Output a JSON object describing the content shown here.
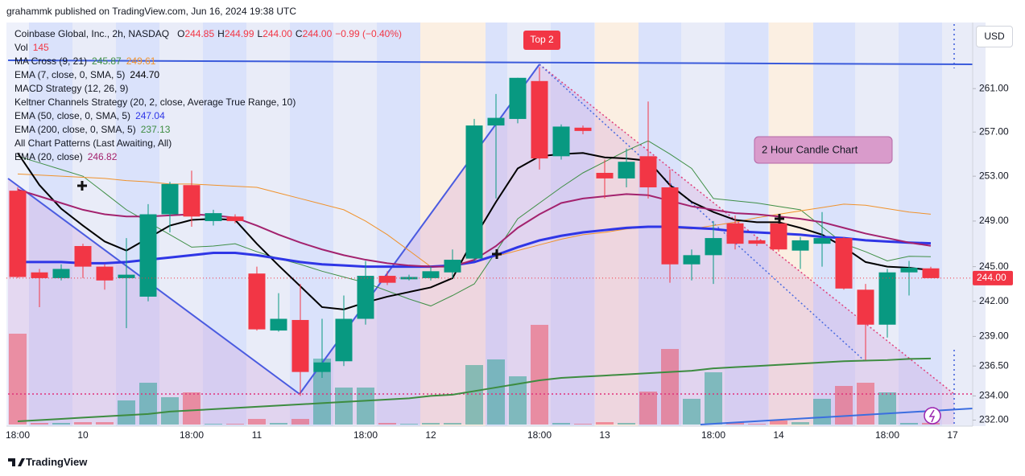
{
  "header": {
    "publisher": "grahammk published on TradingView.com, Jun 16, 2024 19:38 UTC"
  },
  "footer": "TradingView",
  "currency": "USD",
  "chart_data": {
    "type": "candlestick",
    "symbol": "Coinbase Global, Inc., 2h, NASDAQ",
    "ohlc_summary": [
      {
        "label": "O",
        "value": "244.85"
      },
      {
        "label": "H",
        "value": "244.99"
      },
      {
        "label": "L",
        "value": "244.00"
      },
      {
        "label": "C",
        "value": "244.00"
      }
    ],
    "change": "−0.99 (−0.40%)",
    "volume_label": "Vol",
    "last_price_label": "244.00",
    "log_scale": true,
    "up_color": "#089981",
    "down_color": "#f23645",
    "ylim": [
      231.5,
      267.2
    ],
    "yticks": [
      {
        "value": 232,
        "label": "232.00"
      },
      {
        "value": 234,
        "label": "234.00"
      },
      {
        "value": 236.5,
        "label": "236.50"
      },
      {
        "value": 239,
        "label": "239.00"
      },
      {
        "value": 242,
        "label": "242.00"
      },
      {
        "value": 245,
        "label": "245.00"
      },
      {
        "value": 249,
        "label": "249.00"
      },
      {
        "value": 253,
        "label": "253.00"
      },
      {
        "value": 257,
        "label": "257.00"
      },
      {
        "value": 261,
        "label": "261.00"
      }
    ],
    "categories": [
      "18:00",
      null,
      null,
      "10",
      null,
      null,
      null,
      null,
      "18:00",
      null,
      null,
      "11",
      null,
      null,
      null,
      null,
      "18:00",
      null,
      null,
      "12",
      null,
      null,
      null,
      null,
      "18:00",
      null,
      null,
      "13",
      null,
      null,
      null,
      null,
      "18:00",
      null,
      null,
      "14",
      null,
      null,
      null,
      null,
      "18:00",
      null,
      null,
      "17"
    ],
    "open": [
      251.7,
      244.5,
      244,
      246.8,
      245,
      244,
      242.4,
      249.6,
      252.2,
      249,
      249.4,
      244.4,
      239.5,
      240.4,
      236,
      236.9,
      240.5,
      244.2,
      243.9,
      244,
      244.5,
      245.7,
      257.6,
      258.2,
      261.7,
      254.8,
      257.4,
      253.3,
      252.8,
      254.8,
      252,
      245.2,
      246,
      248.8,
      247.3,
      248.8,
      246.4,
      247,
      247.5,
      243,
      240,
      244.5,
      244.85,
      null
    ],
    "high": [
      252,
      244.8,
      245.2,
      247,
      245.2,
      247.5,
      250.5,
      252.5,
      253.5,
      250,
      249.6,
      245,
      242.7,
      243.5,
      240.5,
      242.5,
      245.5,
      244.6,
      244.3,
      245,
      246.5,
      258.2,
      260.5,
      262,
      263,
      257.7,
      257.6,
      254.5,
      255.5,
      259.8,
      253.6,
      246.5,
      249,
      249.5,
      247.6,
      249.5,
      247.6,
      249.8,
      247.6,
      243.5,
      244.8,
      245.5,
      244.99,
      null
    ],
    "low": [
      244,
      241.5,
      243.8,
      244,
      243,
      239.7,
      242,
      248,
      248.5,
      248.6,
      248.8,
      239.5,
      239.4,
      234,
      235.5,
      236.5,
      240,
      243.4,
      243.8,
      243.8,
      244,
      245.5,
      251,
      257.8,
      253.6,
      254.5,
      256.8,
      251,
      252,
      251,
      243.6,
      243.8,
      243.5,
      246.5,
      246.8,
      246.3,
      244.8,
      245,
      243,
      237,
      238.9,
      242.5,
      244,
      null
    ],
    "close": [
      244.1,
      244,
      244.8,
      245,
      243.8,
      244.3,
      249.6,
      252.3,
      249.4,
      249.7,
      249,
      239.6,
      240.5,
      236,
      236.8,
      240.5,
      244.2,
      243.6,
      244.1,
      244.6,
      245.6,
      257.6,
      258.3,
      262,
      254.6,
      257.5,
      257.1,
      252.8,
      254.3,
      252,
      245.2,
      246,
      247.5,
      247,
      247,
      246.5,
      247.3,
      247.5,
      243.1,
      240,
      244.5,
      244.9,
      244,
      null
    ],
    "volume": [
      7910,
      140,
      140,
      210,
      210,
      2100,
      3640,
      2380,
      2800,
      70,
      70,
      490,
      140,
      490,
      5740,
      3220,
      3220,
      140,
      70,
      140,
      140,
      5180,
      5670,
      4200,
      8680,
      140,
      70,
      210,
      140,
      2870,
      6580,
      2240,
      4550,
      210,
      70,
      350,
      210,
      2240,
      3360,
      3640,
      2800,
      140,
      145,
      null
    ],
    "indicators": [
      {
        "name": "MA Cross (9, 21)",
        "lines": [
          {
            "color": "#3f8f46",
            "width": 1,
            "values": [
              254.8,
              254.2,
              253.6,
              253.0,
              251.5,
              250.0,
              248.9,
              247.8,
              246.7,
              246.8,
              247.0,
              246.3,
              245.7,
              245.2,
              244.6,
              244.1,
              243.6,
              242.9,
              242.2,
              241.6,
              242.5,
              243.5,
              246.3,
              249.2,
              250.6,
              252.0,
              253.3,
              254.3,
              255.3,
              256.2,
              255.0,
              253.7,
              251.0,
              250.8,
              250.6,
              250.3,
              250.0,
              248.5,
              247.0,
              246.3,
              245.5,
              245.9,
              245.87,
              null
            ]
          },
          {
            "color": "#f0922b",
            "width": 1,
            "values": [
              253.2,
              253.1,
              253.0,
              252.9,
              252.8,
              252.6,
              252.5,
              252.3,
              252.3,
              252.2,
              252.1,
              252.0,
              251.5,
              251.0,
              250.5,
              250.0,
              249.0,
              247.8,
              246.4,
              245.0,
              245.2,
              245.5,
              245.9,
              246.4,
              246.9,
              247.4,
              247.8,
              248.0,
              248.3,
              248.5,
              248.4,
              248.3,
              248.6,
              248.9,
              249.3,
              249.6,
              249.9,
              250.2,
              250.5,
              250.4,
              250.1,
              249.8,
              249.61,
              null
            ]
          }
        ]
      },
      {
        "name": "EMA (7, close, 0, SMA, 5)",
        "lines": [
          {
            "color": "#000000",
            "width": 2,
            "value_label": "244.70",
            "values": [
              255.1,
              252.2,
              250.1,
              248.6,
              247.2,
              246.4,
              247.5,
              248.6,
              249.1,
              249.2,
              249.1,
              247.0,
              245.1,
              243.3,
              241.5,
              241.3,
              241.9,
              242.4,
              242.8,
              243.2,
              244.0,
              247.5,
              250.7,
              253.7,
              254.8,
              255.0,
              255.1,
              254.7,
              254.6,
              254.4,
              252.2,
              250.7,
              249.8,
              249.1,
              248.9,
              248.9,
              248.4,
              247.8,
              246.7,
              245.4,
              245.0,
              244.9,
              244.7,
              null
            ]
          }
        ]
      },
      {
        "name": "MACD Strategy (12, 26, 9)",
        "lines": []
      },
      {
        "name": "Keltner Channels Strategy (20, 2, close, Average True Range, 10)",
        "lines": []
      },
      {
        "name": "EMA (50, close, 0, SMA, 5)",
        "lines": [
          {
            "color": "#2f36e6",
            "width": 3,
            "values": [
              245.4,
              245.4,
              245.4,
              245.3,
              245.3,
              245.4,
              245.6,
              245.8,
              246.0,
              246.2,
              246.2,
              246.0,
              245.7,
              245.4,
              245.2,
              245.1,
              245.0,
              245.0,
              245.0,
              245.0,
              245.1,
              245.4,
              246.0,
              246.7,
              247.3,
              247.7,
              248.0,
              248.2,
              248.4,
              248.5,
              248.5,
              248.4,
              248.3,
              248.1,
              248.0,
              247.9,
              247.8,
              247.6,
              247.5,
              247.3,
              247.2,
              247.1,
              247.04,
              null
            ]
          }
        ]
      },
      {
        "name": "EMA (200, close, 0, SMA, 5)",
        "lines": [
          {
            "color": "#3d8c40",
            "width": 2,
            "values": [
              231.9,
              232.0,
              232.1,
              232.2,
              232.3,
              232.4,
              232.5,
              232.7,
              232.8,
              232.9,
              233.0,
              233.1,
              233.2,
              233.3,
              233.4,
              233.5,
              233.6,
              233.7,
              233.8,
              234.0,
              234.1,
              234.4,
              234.7,
              235.0,
              235.3,
              235.5,
              235.6,
              235.7,
              235.8,
              235.9,
              236.0,
              236.1,
              236.3,
              236.4,
              236.5,
              236.6,
              236.7,
              236.8,
              236.9,
              236.95,
              237.0,
              237.1,
              237.13,
              null
            ]
          }
        ]
      },
      {
        "name": "All Chart Patterns (Last Awaiting, All)",
        "lines": []
      },
      {
        "name": "EMA (20, close)",
        "lines": [
          {
            "color": "#a3226e",
            "width": 2,
            "values": [
              251.8,
              251.2,
              250.6,
              250.0,
              249.6,
              249.4,
              249.4,
              249.5,
              249.6,
              249.5,
              249.3,
              248.6,
              247.8,
              247.1,
              246.5,
              246.0,
              245.6,
              245.3,
              245.1,
              245.0,
              245.0,
              245.6,
              246.8,
              248.4,
              249.6,
              250.6,
              251.0,
              251.2,
              251.4,
              251.3,
              250.8,
              250.3,
              250.0,
              249.7,
              249.6,
              249.4,
              249.2,
              248.9,
              248.4,
              247.9,
              247.5,
              247.1,
              246.82,
              null
            ]
          }
        ]
      }
    ],
    "annotations": [
      {
        "text": "Top 2"
      },
      {
        "text": "2 Hour Candle Chart"
      }
    ]
  }
}
